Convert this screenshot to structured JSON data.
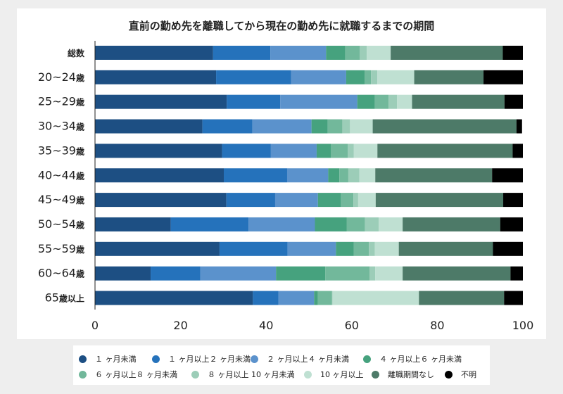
{
  "chart_data": {
    "type": "bar",
    "orientation": "horizontal",
    "stacked": true,
    "title": "直前の勤め先を離職してから現在の勤め先に就職するまでの期間",
    "xlabel": "",
    "ylabel": "",
    "xlim": [
      0,
      100
    ],
    "xticks": [
      "0",
      "20",
      "40",
      "60",
      "80",
      "100"
    ],
    "grid": false,
    "legend_position": "bottom",
    "categories": [
      "総数",
      "20~24歳",
      "25~29歳",
      "30~34歳",
      "35~39歳",
      "40~44歳",
      "45~49歳",
      "50~54歳",
      "55~59歳",
      "60~64歳",
      "65歳以上"
    ],
    "series": [
      {
        "name": "１ヶ月未満",
        "color": "#1d4f83",
        "values": [
          27.6,
          28.3,
          30.8,
          25.1,
          29.7,
          30.1,
          30.7,
          17.7,
          29.1,
          13.0,
          36.9
        ]
      },
      {
        "name": "１ヶ月以上２ヶ月未満",
        "color": "#2572bb",
        "values": [
          13.4,
          17.5,
          12.5,
          11.7,
          11.4,
          14.8,
          11.4,
          18.2,
          15.9,
          11.6,
          6.0
        ]
      },
      {
        "name": "２ヶ月以上４ヶ月未満",
        "color": "#5b92cc",
        "values": [
          13.0,
          12.9,
          18.0,
          13.8,
          10.7,
          9.6,
          10.0,
          15.5,
          11.3,
          17.7,
          8.3
        ]
      },
      {
        "name": "４ヶ月以上６ヶ月未満",
        "color": "#46a27e",
        "values": [
          4.5,
          4.3,
          4.1,
          3.8,
          3.3,
          2.6,
          5.3,
          7.4,
          4.2,
          11.5,
          0.9
        ]
      },
      {
        "name": "６ヶ月以上８ヶ月未満",
        "color": "#72b89b",
        "values": [
          3.4,
          1.5,
          3.2,
          3.4,
          4.0,
          2.1,
          3.0,
          4.3,
          3.5,
          10.4,
          3.3
        ]
      },
      {
        "name": "８ヶ月以上１０ヶ月未満",
        "color": "#9ccdb8",
        "values": [
          1.6,
          1.5,
          2.0,
          1.8,
          1.4,
          2.6,
          1.1,
          3.2,
          1.4,
          1.3,
          0.1
        ]
      },
      {
        "name": "１０ヶ月以上",
        "color": "#bfe0d2",
        "values": [
          5.6,
          8.6,
          3.5,
          5.3,
          5.5,
          3.7,
          4.1,
          5.6,
          5.6,
          6.4,
          20.2
        ]
      },
      {
        "name": "離職期間なし",
        "color": "#4d7a68",
        "values": [
          26.2,
          16.2,
          21.6,
          33.6,
          31.6,
          27.3,
          29.8,
          22.8,
          22.0,
          25.2,
          19.9
        ]
      },
      {
        "name": "不明",
        "color": "#000000",
        "values": [
          4.7,
          9.2,
          4.3,
          1.3,
          2.4,
          7.2,
          4.6,
          5.3,
          7.0,
          2.9,
          4.4
        ]
      }
    ]
  },
  "legend_display": [
    "１ ヶ月未満",
    "１ ヶ月以上２ ヶ月未満",
    "２ ヶ月以上４ ヶ月未満",
    "４ ヶ月以上６ ヶ月未満",
    "６ ヶ月以上８ ヶ月未満",
    "８ ヶ月以上 10 ヶ月未満",
    "10 ヶ月以上",
    "離職期間なし",
    "不明"
  ]
}
